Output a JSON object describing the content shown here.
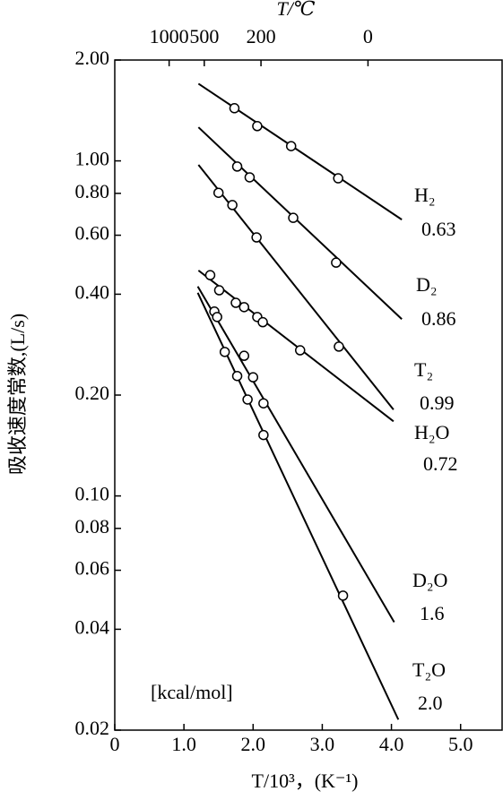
{
  "chart_data": {
    "type": "scatter",
    "y_label": "吸收速度常数,(L/s)",
    "x_label": "T/10³，(K⁻¹)",
    "x2_label": "T/℃",
    "annotation": "[kcal/mol]",
    "log_y": true,
    "xlim": [
      0,
      5.6
    ],
    "ylim": [
      0.02,
      2.0
    ],
    "xticks": [
      0,
      {
        "value": 1,
        "label": "1.0"
      },
      {
        "value": 2,
        "label": "2.0"
      },
      {
        "value": 3,
        "label": "3.0"
      },
      {
        "value": 4,
        "label": "4.0"
      },
      {
        "value": 5,
        "label": "5.0"
      }
    ],
    "x2ticks": [
      {
        "value": 0.786,
        "label": "1000"
      },
      {
        "value": 1.294,
        "label": "500"
      },
      {
        "value": 2.114,
        "label": "200"
      },
      {
        "value": 3.661,
        "label": "0"
      }
    ],
    "yticks": [
      0.02,
      0.04,
      0.06,
      0.08,
      {
        "value": 0.1,
        "label": "0.10"
      },
      {
        "value": 0.2,
        "label": "0.20"
      },
      {
        "value": 0.4,
        "label": "0.40"
      },
      {
        "value": 0.6,
        "label": "0.60"
      },
      {
        "value": 0.8,
        "label": "0.80"
      },
      {
        "value": 1.0,
        "label": "1.00"
      },
      {
        "value": 2.0,
        "label": "2.00"
      }
    ],
    "series": [
      {
        "name": "H₂",
        "energy": 0.63,
        "color": "#000000",
        "x": [
          1.73,
          2.06,
          2.55,
          3.23
        ],
        "values": [
          1.436,
          1.27,
          1.107,
          0.887
        ],
        "fit_x": [
          1.21,
          4.15
        ],
        "fit_values": [
          1.7,
          0.668
        ]
      },
      {
        "name": "D₂",
        "energy": 0.86,
        "color": "#000000",
        "x": [
          1.77,
          1.95,
          2.58,
          3.2
        ],
        "values": [
          0.962,
          0.893,
          0.676,
          0.497
        ],
        "fit_x": [
          1.21,
          4.15
        ],
        "fit_values": [
          1.26,
          0.337
        ]
      },
      {
        "name": "T₂",
        "energy": 0.99,
        "color": "#000000",
        "x": [
          1.5,
          1.7,
          2.05,
          3.24
        ],
        "values": [
          0.803,
          0.738,
          0.591,
          0.279
        ],
        "fit_x": [
          1.21,
          4.03
        ],
        "fit_values": [
          0.973,
          0.181
        ]
      },
      {
        "name": "H₂O",
        "energy": 0.72,
        "color": "#000000",
        "x": [
          1.38,
          1.51,
          1.75,
          1.87,
          2.06,
          2.14,
          2.68
        ],
        "values": [
          0.456,
          0.411,
          0.377,
          0.366,
          0.342,
          0.33,
          0.272
        ],
        "fit_x": [
          1.21,
          4.03
        ],
        "fit_values": [
          0.471,
          0.167
        ]
      },
      {
        "name": "D₂O",
        "energy": 1.6,
        "color": "#000000",
        "x": [
          1.44,
          1.87,
          2.0,
          2.15
        ],
        "values": [
          0.355,
          0.262,
          0.226,
          0.189
        ],
        "fit_x": [
          1.2,
          4.04
        ],
        "fit_values": [
          0.422,
          0.042
        ]
      },
      {
        "name": "T₂O",
        "energy": {
          "value": 2.0,
          "label": "2.0"
        },
        "color": "#000000",
        "x": [
          1.48,
          1.59,
          1.77,
          1.92,
          2.15,
          3.3
        ],
        "values": [
          0.342,
          0.269,
          0.228,
          0.194,
          0.152,
          0.0504
        ],
        "fit_x": [
          1.2,
          4.1
        ],
        "fit_values": [
          0.404,
          0.0215
        ]
      }
    ]
  }
}
